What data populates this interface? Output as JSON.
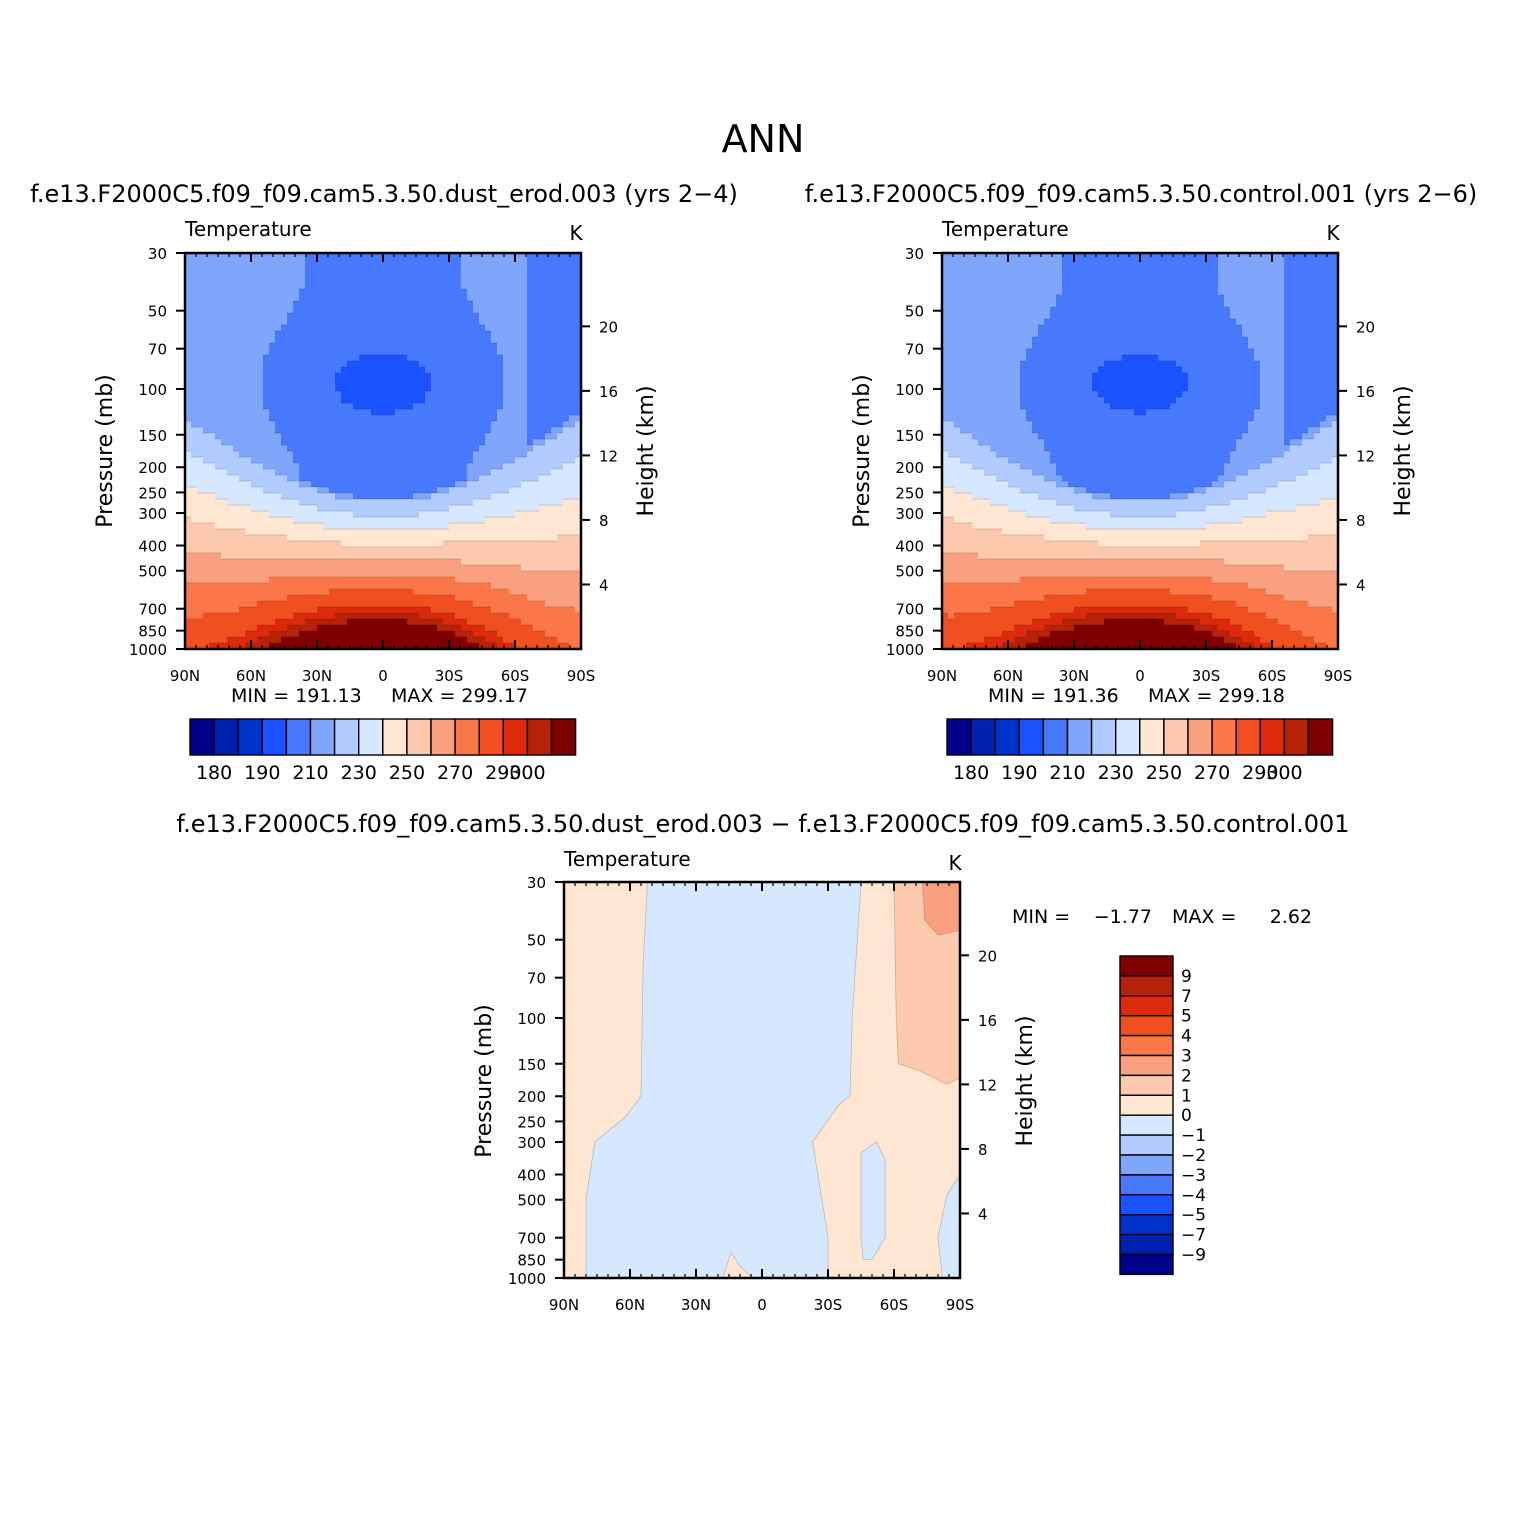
{
  "page": {
    "title": "ANN",
    "panel_titles": [
      "f.e13.F2000C5.f09_f09.cam5.3.50.dust_erod.003 (yrs 2−4)",
      "f.e13.F2000C5.f09_f09.cam5.3.50.control.001 (yrs 2−6)",
      "f.e13.F2000C5.f09_f09.cam5.3.50.dust_erod.003 − f.e13.F2000C5.f09_f09.cam5.3.50.control.001"
    ]
  },
  "chart_data": [
    {
      "type": "heatmap",
      "variable": "Temperature",
      "units": "K",
      "ylabel": "Pressure (mb)",
      "ylabel_right": "Height (km)",
      "x_ticks": [
        "90N",
        "60N",
        "30N",
        "0",
        "30S",
        "60S",
        "90S"
      ],
      "x_range": [
        90,
        -90
      ],
      "y_ticks": [
        "30",
        "50",
        "70",
        "100",
        "150",
        "200",
        "250",
        "300",
        "400",
        "500",
        "700",
        "850",
        "1000"
      ],
      "y_range": [
        1000,
        30
      ],
      "y_scale": "log",
      "height_ticks": [
        "4",
        "8",
        "12",
        "16",
        "20"
      ],
      "min_label": "MIN = 191.13",
      "max_label": "MAX = 299.17",
      "min": 191.13,
      "max": 299.17,
      "levels": [
        180,
        185,
        190,
        200,
        210,
        220,
        230,
        240,
        250,
        260,
        270,
        280,
        290,
        295,
        300
      ],
      "colorbar_labels": [
        "180",
        "190",
        "210",
        "230",
        "250",
        "270",
        "290",
        "300"
      ],
      "colorbar_orientation": "horizontal"
    },
    {
      "type": "heatmap",
      "variable": "Temperature",
      "units": "K",
      "ylabel": "Pressure (mb)",
      "ylabel_right": "Height (km)",
      "x_ticks": [
        "90N",
        "60N",
        "30N",
        "0",
        "30S",
        "60S",
        "90S"
      ],
      "x_range": [
        90,
        -90
      ],
      "y_ticks": [
        "30",
        "50",
        "70",
        "100",
        "150",
        "200",
        "250",
        "300",
        "400",
        "500",
        "700",
        "850",
        "1000"
      ],
      "y_range": [
        1000,
        30
      ],
      "y_scale": "log",
      "height_ticks": [
        "4",
        "8",
        "12",
        "16",
        "20"
      ],
      "min_label": "MIN = 191.36",
      "max_label": "MAX = 299.18",
      "min": 191.36,
      "max": 299.18,
      "levels": [
        180,
        185,
        190,
        200,
        210,
        220,
        230,
        240,
        250,
        260,
        270,
        280,
        290,
        295,
        300
      ],
      "colorbar_labels": [
        "180",
        "190",
        "210",
        "230",
        "250",
        "270",
        "290",
        "300"
      ],
      "colorbar_orientation": "horizontal"
    },
    {
      "type": "heatmap",
      "variable": "Temperature",
      "units": "K",
      "ylabel": "Pressure (mb)",
      "ylabel_right": "Height (km)",
      "x_ticks": [
        "90N",
        "60N",
        "30N",
        "0",
        "30S",
        "60S",
        "90S"
      ],
      "x_range": [
        90,
        -90
      ],
      "y_ticks": [
        "30",
        "50",
        "70",
        "100",
        "150",
        "200",
        "250",
        "300",
        "400",
        "500",
        "700",
        "850",
        "1000"
      ],
      "y_range": [
        1000,
        30
      ],
      "y_scale": "log",
      "height_ticks": [
        "4",
        "8",
        "12",
        "16",
        "20"
      ],
      "min_label": "MIN =",
      "min_value": "−1.77",
      "max_label": "MAX =",
      "max_value": "2.62",
      "min": -1.77,
      "max": 2.62,
      "levels": [
        -9,
        -7,
        -5,
        -4,
        -3,
        -2,
        -1,
        0,
        1,
        2,
        3,
        4,
        5,
        7,
        9
      ],
      "colorbar_labels": [
        "9",
        "7",
        "5",
        "4",
        "3",
        "2",
        "1",
        "0",
        "−1",
        "−2",
        "−3",
        "−4",
        "−5",
        "−7",
        "−9"
      ],
      "colorbar_orientation": "vertical"
    }
  ],
  "colormap": [
    "#00008b",
    "#0021b0",
    "#0033cc",
    "#1a52ff",
    "#4878fb",
    "#80a6fb",
    "#b2cbfe",
    "#d6e8ff",
    "#ffe6d3",
    "#fcc9ae",
    "#f8a07f",
    "#fb774a",
    "#f04f1f",
    "#dd2a0c",
    "#b52207",
    "#7f0000"
  ]
}
